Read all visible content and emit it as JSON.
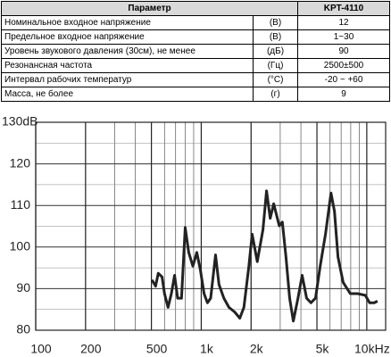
{
  "table": {
    "header": [
      "Параметр",
      "KPT-4110"
    ],
    "rows": [
      [
        "Номинальное входное напряжение",
        "(В)",
        "12"
      ],
      [
        "Предельное входное напряжение",
        "(В)",
        "1~30"
      ],
      [
        "Уровень звукового давления (30см), не менее",
        "(дБ)",
        "90"
      ],
      [
        "Резонансная частота",
        "(Гц)",
        "2500±500"
      ],
      [
        "Интервал рабочих температур",
        "(°С)",
        "-20 ~ +60"
      ],
      [
        "Масса, не более",
        "(г)",
        "9"
      ]
    ]
  },
  "chart_data": {
    "type": "line",
    "xscale": "log",
    "grid": true,
    "xlim": [
      100,
      13000
    ],
    "ylim": [
      80,
      130
    ],
    "xticks": [
      100,
      200,
      500,
      {
        "value": 1000,
        "label": "1k"
      },
      {
        "value": 2000,
        "label": "2k"
      },
      {
        "value": 5000,
        "label": "5k"
      },
      {
        "value": 10000,
        "label": "10kHz"
      }
    ],
    "yticks": [
      80,
      90,
      100,
      110,
      120,
      {
        "value": 130,
        "label": "130dB"
      }
    ],
    "x": [
      504,
      530,
      550,
      580,
      600,
      630,
      660,
      690,
      720,
      760,
      800,
      840,
      890,
      940,
      990,
      1040,
      1090,
      1140,
      1220,
      1280,
      1370,
      1470,
      1590,
      1710,
      1810,
      1940,
      2030,
      2180,
      2360,
      2480,
      2610,
      2740,
      2960,
      3090,
      3250,
      3420,
      3600,
      3840,
      4070,
      4330,
      4600,
      4900,
      5230,
      5630,
      6080,
      6380,
      6700,
      7200,
      7950,
      8800,
      9800,
      10400,
      11100,
      11600
    ],
    "series": [
      {
        "color": "#222222",
        "values": [
          92.1,
          90.6,
          93.7,
          92.8,
          88.8,
          85.5,
          88.8,
          93.2,
          87.7,
          87.7,
          104.7,
          98.7,
          95.4,
          98.7,
          94.3,
          88.8,
          86.6,
          87.7,
          98.1,
          91,
          87.7,
          85.5,
          84.4,
          82.9,
          85.5,
          95.4,
          103.1,
          96.5,
          104.2,
          113.5,
          106.9,
          110.4,
          105.1,
          106,
          97.6,
          87.7,
          82.2,
          87.7,
          93.2,
          87.7,
          86.6,
          87.7,
          95.4,
          103.1,
          113,
          108.6,
          97.6,
          91.5,
          88.8,
          88.8,
          88.4,
          86.6,
          86.6,
          87
        ]
      }
    ]
  }
}
